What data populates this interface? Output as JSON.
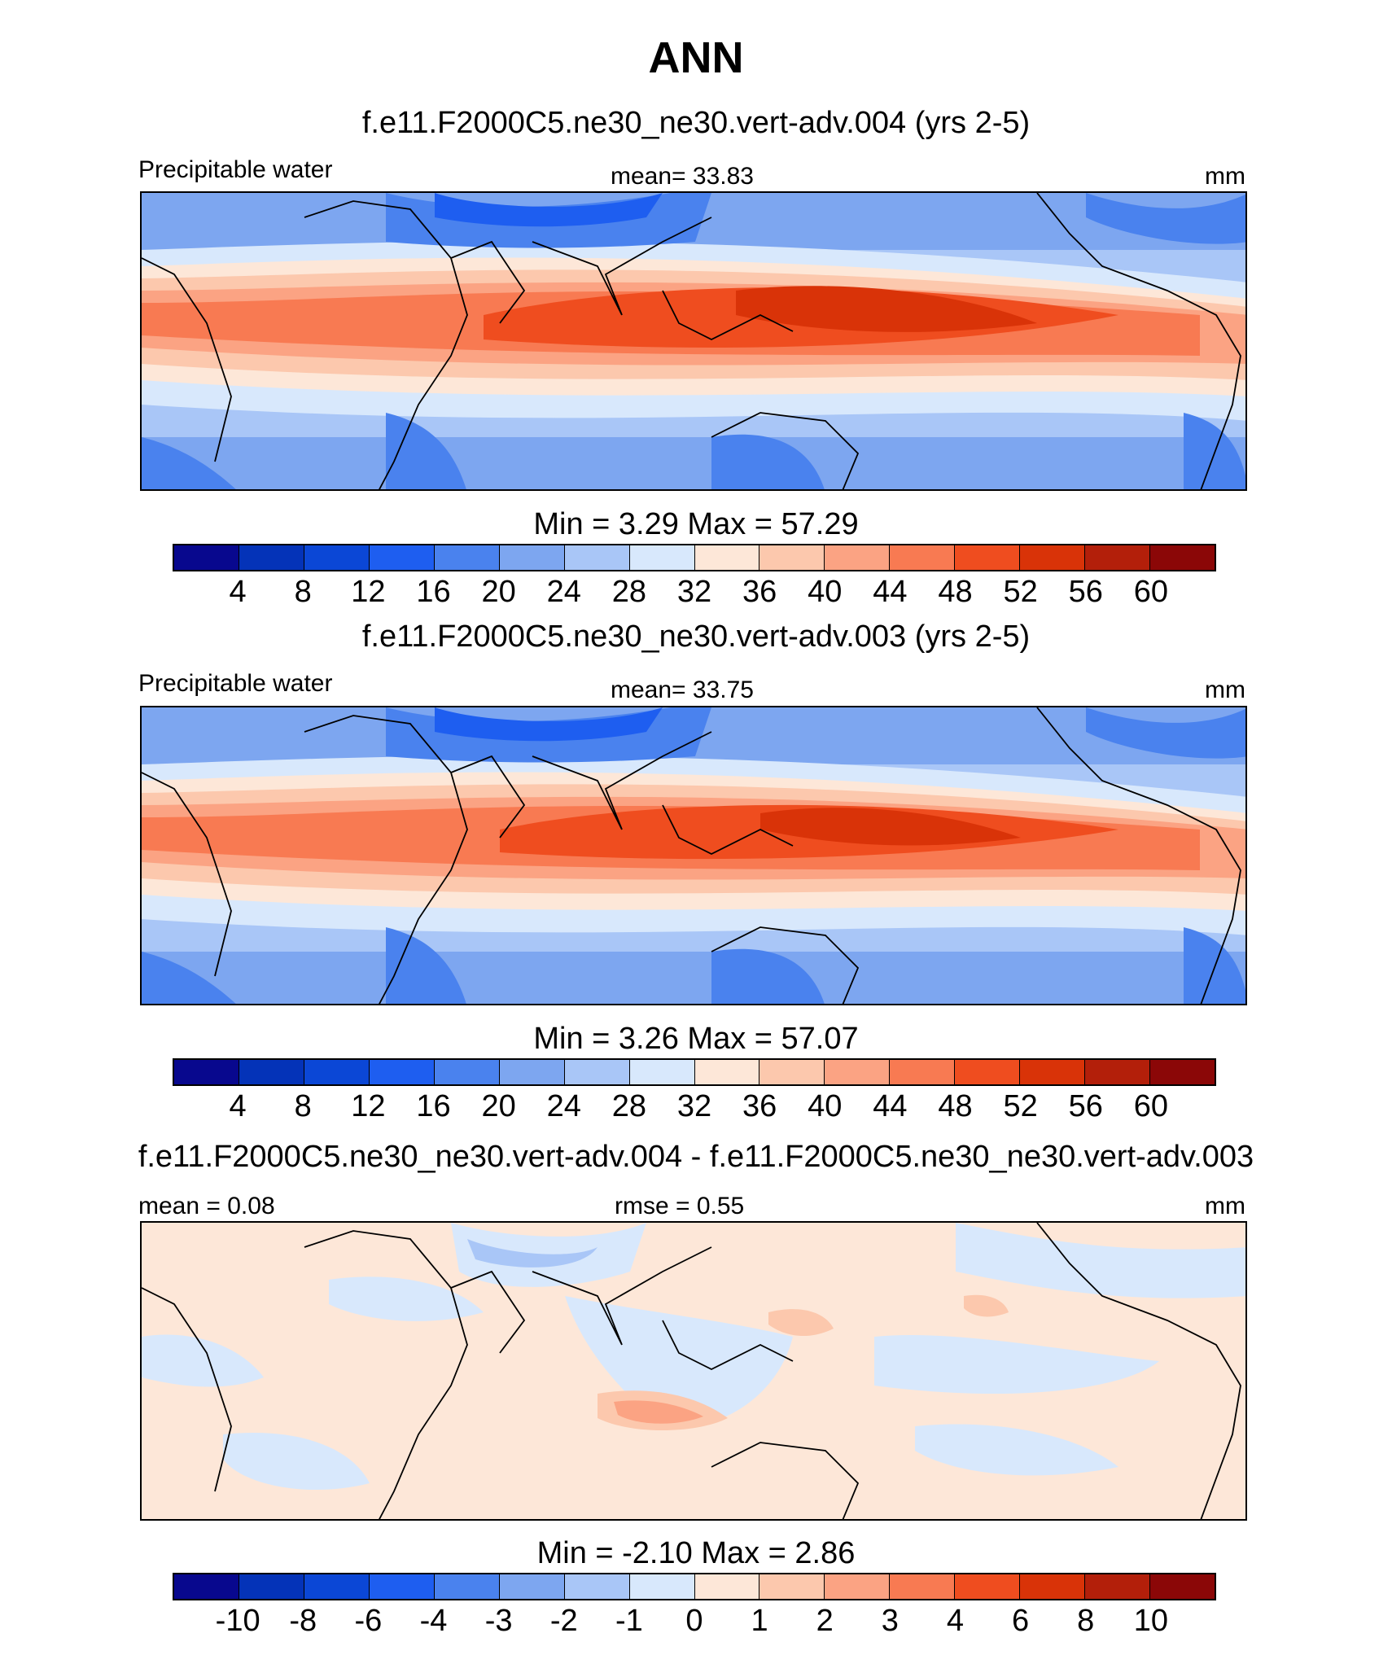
{
  "title": "ANN",
  "colors": {
    "abs_scale": [
      "#08088e",
      "#0433b8",
      "#0b47d6",
      "#1e5ef0",
      "#4a82ee",
      "#7da6f0",
      "#a9c6f7",
      "#d8e8fc",
      "#fde7d8",
      "#fcc8ad",
      "#fba383",
      "#f87a52",
      "#ef4d1f",
      "#d93308",
      "#b31f0a",
      "#8b0707"
    ],
    "diff_scale": [
      "#08088e",
      "#0433b8",
      "#0b47d6",
      "#1e5ef0",
      "#4a82ee",
      "#7da6f0",
      "#a9c6f7",
      "#d8e8fc",
      "#fde7d8",
      "#fcc8ad",
      "#fba383",
      "#f87a52",
      "#ef4d1f",
      "#d93308",
      "#b31f0a",
      "#8b0707"
    ]
  },
  "panels": [
    {
      "case_title": "f.e11.F2000C5.ne30_ne30.vert-adv.004 (yrs 2-5)",
      "variable": "Precipitable water",
      "stat": "mean=  33.83",
      "units": "mm",
      "min_max": "Min =   3.29 Max =  57.29",
      "min": 3.29,
      "max": 57.29,
      "mean": 33.83,
      "levels": [
        "4",
        "8",
        "12",
        "16",
        "20",
        "24",
        "28",
        "32",
        "36",
        "40",
        "44",
        "48",
        "52",
        "56",
        "60"
      ]
    },
    {
      "case_title": "f.e11.F2000C5.ne30_ne30.vert-adv.003 (yrs 2-5)",
      "variable": "Precipitable water",
      "stat": "mean=  33.75",
      "units": "mm",
      "min_max": "Min =   3.26 Max =  57.07",
      "min": 3.26,
      "max": 57.07,
      "mean": 33.75,
      "levels": [
        "4",
        "8",
        "12",
        "16",
        "20",
        "24",
        "28",
        "32",
        "36",
        "40",
        "44",
        "48",
        "52",
        "56",
        "60"
      ]
    },
    {
      "case_title": "f.e11.F2000C5.ne30_ne30.vert-adv.004 - f.e11.F2000C5.ne30_ne30.vert-adv.003",
      "stat_left": "mean =   0.08",
      "stat": "rmse =   0.55",
      "units": "mm",
      "min_max": "Min =  -2.10 Max =   2.86",
      "min": -2.1,
      "max": 2.86,
      "mean": 0.08,
      "rmse": 0.55,
      "levels": [
        "-10",
        "-8",
        "-6",
        "-4",
        "-3",
        "-2",
        "-1",
        "0",
        "1",
        "2",
        "3",
        "4",
        "6",
        "8",
        "10"
      ]
    }
  ]
}
